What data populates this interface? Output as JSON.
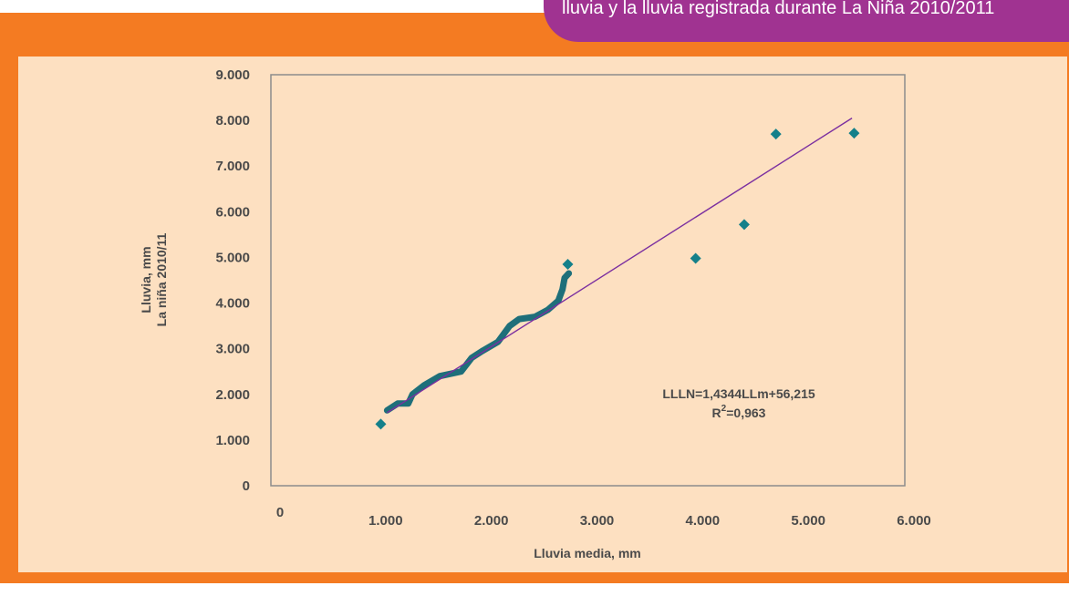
{
  "banner": {
    "text": "lluvia y la lluvia registrada durante La Niña 2010/2011"
  },
  "colors": {
    "frame": "#f47b22",
    "panel": "#fde0c1",
    "banner": "#a03391",
    "points": "#14808a",
    "trend": "#7b2fa0",
    "curve": "#1e6f7a"
  },
  "chart_data": {
    "type": "scatter",
    "xlabel": "Lluvia media, mm",
    "ylabel_lines": [
      "Lluvia, mm",
      "La niña 2010/11"
    ],
    "xlim": [
      0,
      6000
    ],
    "ylim": [
      0,
      9000
    ],
    "x_ticks": [
      {
        "value": 0,
        "label": "0"
      },
      {
        "value": 1000,
        "label": "1.000"
      },
      {
        "value": 2000,
        "label": "2.000"
      },
      {
        "value": 3000,
        "label": "3.000"
      },
      {
        "value": 4000,
        "label": "4.000"
      },
      {
        "value": 5000,
        "label": "5.000"
      },
      {
        "value": 6000,
        "label": "6.000"
      }
    ],
    "y_ticks": [
      {
        "value": 0,
        "label": "0"
      },
      {
        "value": 1000,
        "label": "1.000"
      },
      {
        "value": 2000,
        "label": "2.000"
      },
      {
        "value": 3000,
        "label": "3.000"
      },
      {
        "value": 4000,
        "label": "4.000"
      },
      {
        "value": 5000,
        "label": "5.000"
      },
      {
        "value": 6000,
        "label": "6.000"
      },
      {
        "value": 7000,
        "label": "7.000"
      },
      {
        "value": 8000,
        "label": "8.000"
      },
      {
        "value": 9000,
        "label": "9.000"
      }
    ],
    "points": [
      {
        "x": 1040,
        "y": 1350
      },
      {
        "x": 2810,
        "y": 4850
      },
      {
        "x": 4020,
        "y": 4980
      },
      {
        "x": 4480,
        "y": 5720
      },
      {
        "x": 4780,
        "y": 7700
      },
      {
        "x": 5520,
        "y": 7720
      }
    ],
    "dense_curve": [
      [
        1100,
        1650
      ],
      [
        1200,
        1800
      ],
      [
        1300,
        1800
      ],
      [
        1340,
        2000
      ],
      [
        1450,
        2200
      ],
      [
        1600,
        2400
      ],
      [
        1800,
        2500
      ],
      [
        1900,
        2800
      ],
      [
        2000,
        2950
      ],
      [
        2150,
        3150
      ],
      [
        2260,
        3500
      ],
      [
        2350,
        3650
      ],
      [
        2500,
        3700
      ],
      [
        2620,
        3850
      ],
      [
        2720,
        4050
      ],
      [
        2760,
        4300
      ],
      [
        2780,
        4550
      ],
      [
        2820,
        4650
      ]
    ],
    "trendline": {
      "x_range": [
        1100,
        5500
      ],
      "y_range": [
        1600,
        8050
      ],
      "equation": "LLLN=1,4344LLm+56,215",
      "r2_prefix": "R",
      "r2_sup": "2",
      "r2_value": "=0,963"
    },
    "grid": false,
    "legend": "none"
  }
}
